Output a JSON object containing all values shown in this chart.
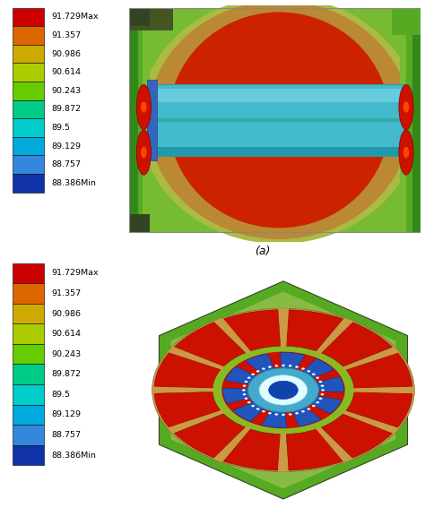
{
  "legend_labels": [
    "91.729Max",
    "91.357",
    "90.986",
    "90.614",
    "90.243",
    "89.872",
    "89.5",
    "89.129",
    "88.757",
    "88.386Min"
  ],
  "legend_colors": [
    "#cc0000",
    "#dd6600",
    "#ccaa00",
    "#aacc00",
    "#66cc00",
    "#00cc88",
    "#00cccc",
    "#00aadd",
    "#3388dd",
    "#1133aa"
  ],
  "label_a": "(a)",
  "background_color": "#ffffff",
  "figure_width": 4.74,
  "figure_height": 5.86,
  "dpi": 100,
  "top_motor_colors": {
    "outer_bg": "#88aa44",
    "stator_outer": "#bbaa44",
    "stator_hot": "#cc2200",
    "endwinding_tan": "#bb8833",
    "endwinding_red": "#cc2200",
    "shaft_cyan": "#44bbcc",
    "shaft_top_highlight": "#66ccdd",
    "shaft_end_blue": "#3366bb",
    "bearing_red": "#cc1100",
    "bearing_ring": "#cc3300",
    "side_green": "#77bb33"
  },
  "bot_motor_colors": {
    "hex_green": "#55aa22",
    "hex_green_light": "#88bb44",
    "stator_ring_tan": "#cc9944",
    "stator_green": "#88bb22",
    "coil_red": "#cc1100",
    "rotor_red": "#cc1100",
    "shaft_blue": "#2255bb",
    "shaft_cyan": "#44aacc",
    "shaft_white": "#ddffff",
    "tooth_gap": "#88bb22"
  }
}
